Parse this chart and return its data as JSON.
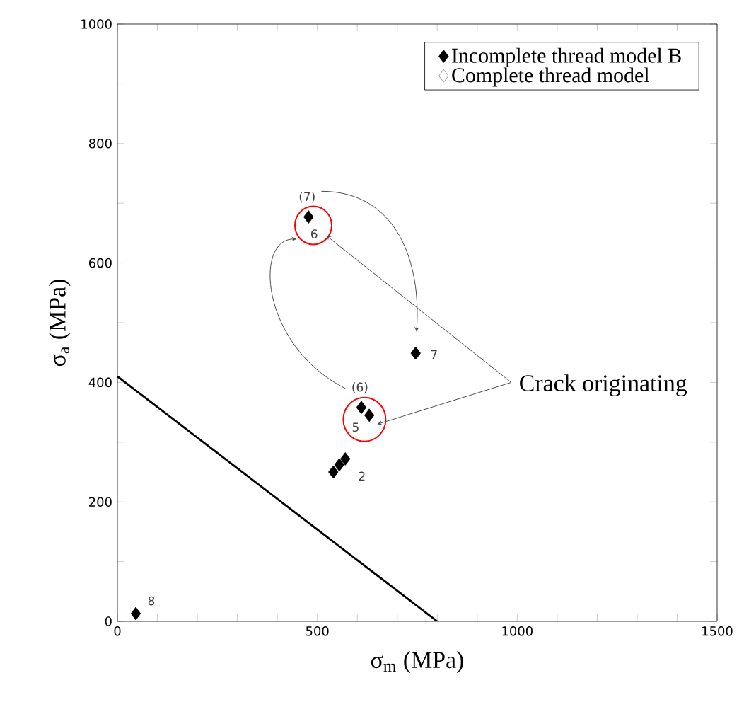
{
  "chart_data": {
    "type": "scatter",
    "xlabel": "σ$_{m}$ (MPa)",
    "ylabel": "σ$_{a}$ (MPa)",
    "xlim": [
      0,
      1500
    ],
    "ylim": [
      0,
      1000
    ],
    "xticks": [
      0,
      {
        "value": 100,
        "label": null
      },
      {
        "value": 200,
        "label": null
      },
      {
        "value": 300,
        "label": null
      },
      {
        "value": 400,
        "label": null
      },
      500,
      {
        "value": 600,
        "label": null
      },
      {
        "value": 700,
        "label": null
      },
      {
        "value": 800,
        "label": null
      },
      {
        "value": 900,
        "label": null
      },
      1000,
      {
        "value": 1100,
        "label": null
      },
      {
        "value": 1200,
        "label": null
      },
      {
        "value": 1300,
        "label": null
      },
      {
        "value": 1400,
        "label": null
      },
      1500
    ],
    "yticks": [
      0,
      {
        "value": 100,
        "label": null
      },
      200,
      {
        "value": 300,
        "label": null
      },
      400,
      {
        "value": 500,
        "label": null
      },
      600,
      {
        "value": 700,
        "label": null
      },
      800,
      {
        "value": 900,
        "label": null
      },
      1000
    ],
    "marker": "diamond",
    "legend": "top right",
    "grid": false,
    "series": [
      {
        "name": "Incomplete thread model B",
        "color": "#000000",
        "x": [
          46,
          540,
          555,
          570,
          610,
          630,
          746,
          478
        ],
        "values": [
          13,
          250,
          262,
          272,
          358,
          345,
          449,
          677
        ]
      },
      {
        "name": "Complete thread model",
        "color": "#808080"
      },
      {
        "type": "line",
        "color": "#000000",
        "marker": "none",
        "x": [
          0,
          800
        ],
        "values": [
          410,
          0
        ]
      }
    ],
    "annotations": [
      "Crack originating",
      {
        "text": "8",
        "x": 46,
        "y": 13
      },
      {
        "text": "2",
        "x": 555,
        "y": 262
      },
      {
        "text": "5",
        "x": 610,
        "y": 358
      },
      {
        "text": "(6)",
        "x": 610,
        "y": 358
      },
      {
        "text": "7",
        "x": 746,
        "y": 449
      },
      {
        "text": "6",
        "x": 478,
        "y": 677
      },
      {
        "text": "(7)",
        "x": 478,
        "y": 677
      }
    ]
  }
}
